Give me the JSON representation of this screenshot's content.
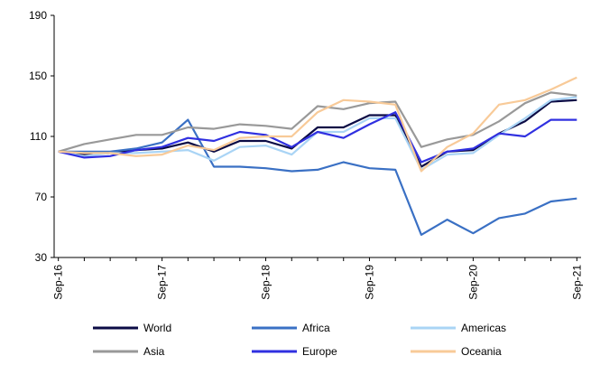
{
  "chart_data": {
    "type": "line",
    "title": "",
    "xlabel": "",
    "ylabel": "",
    "ylim": [
      30,
      190
    ],
    "yticks": [
      30,
      70,
      110,
      150,
      190
    ],
    "grid": false,
    "legend_position": "bottom",
    "x_tick_labels": [
      "Sep-16",
      "Sep-17",
      "Sep-18",
      "Sep-19",
      "Sep-20",
      "Sep-21"
    ],
    "x": [
      "Sep-16",
      "Dec-16",
      "Mar-17",
      "Jun-17",
      "Sep-17",
      "Dec-17",
      "Mar-18",
      "Jun-18",
      "Sep-18",
      "Dec-18",
      "Mar-19",
      "Jun-19",
      "Sep-19",
      "Dec-19",
      "Mar-20",
      "Jun-20",
      "Sep-20",
      "Dec-20",
      "Mar-21",
      "Jun-21",
      "Sep-21"
    ],
    "series": [
      {
        "name": "World",
        "color": "#0b0b45",
        "values": [
          100,
          98,
          99,
          101,
          102,
          106,
          100,
          107,
          107,
          102,
          116,
          116,
          124,
          124,
          90,
          100,
          101,
          112,
          120,
          133,
          134
        ]
      },
      {
        "name": "Africa",
        "color": "#3a70c4",
        "values": [
          100,
          100,
          100,
          102,
          106,
          121,
          90,
          90,
          89,
          87,
          88,
          93,
          89,
          88,
          45,
          55,
          46,
          56,
          59,
          67,
          69
        ]
      },
      {
        "name": "Americas",
        "color": "#a9d4f5",
        "values": [
          100,
          97,
          99,
          99,
          100,
          101,
          94,
          103,
          104,
          98,
          113,
          113,
          122,
          122,
          88,
          98,
          99,
          111,
          122,
          134,
          136
        ]
      },
      {
        "name": "Asia",
        "color": "#999999",
        "values": [
          100,
          105,
          108,
          111,
          111,
          116,
          115,
          118,
          117,
          115,
          130,
          128,
          132,
          133,
          103,
          108,
          111,
          120,
          132,
          139,
          137
        ]
      },
      {
        "name": "Europe",
        "color": "#3030e0",
        "values": [
          100,
          96,
          97,
          101,
          103,
          109,
          107,
          113,
          111,
          103,
          113,
          109,
          118,
          126,
          93,
          100,
          102,
          112,
          110,
          121,
          121
        ]
      },
      {
        "name": "Oceania",
        "color": "#f8ca98",
        "values": [
          100,
          99,
          99,
          97,
          98,
          104,
          101,
          109,
          110,
          110,
          126,
          134,
          133,
          131,
          87,
          103,
          112,
          131,
          134,
          141,
          149
        ]
      }
    ]
  }
}
